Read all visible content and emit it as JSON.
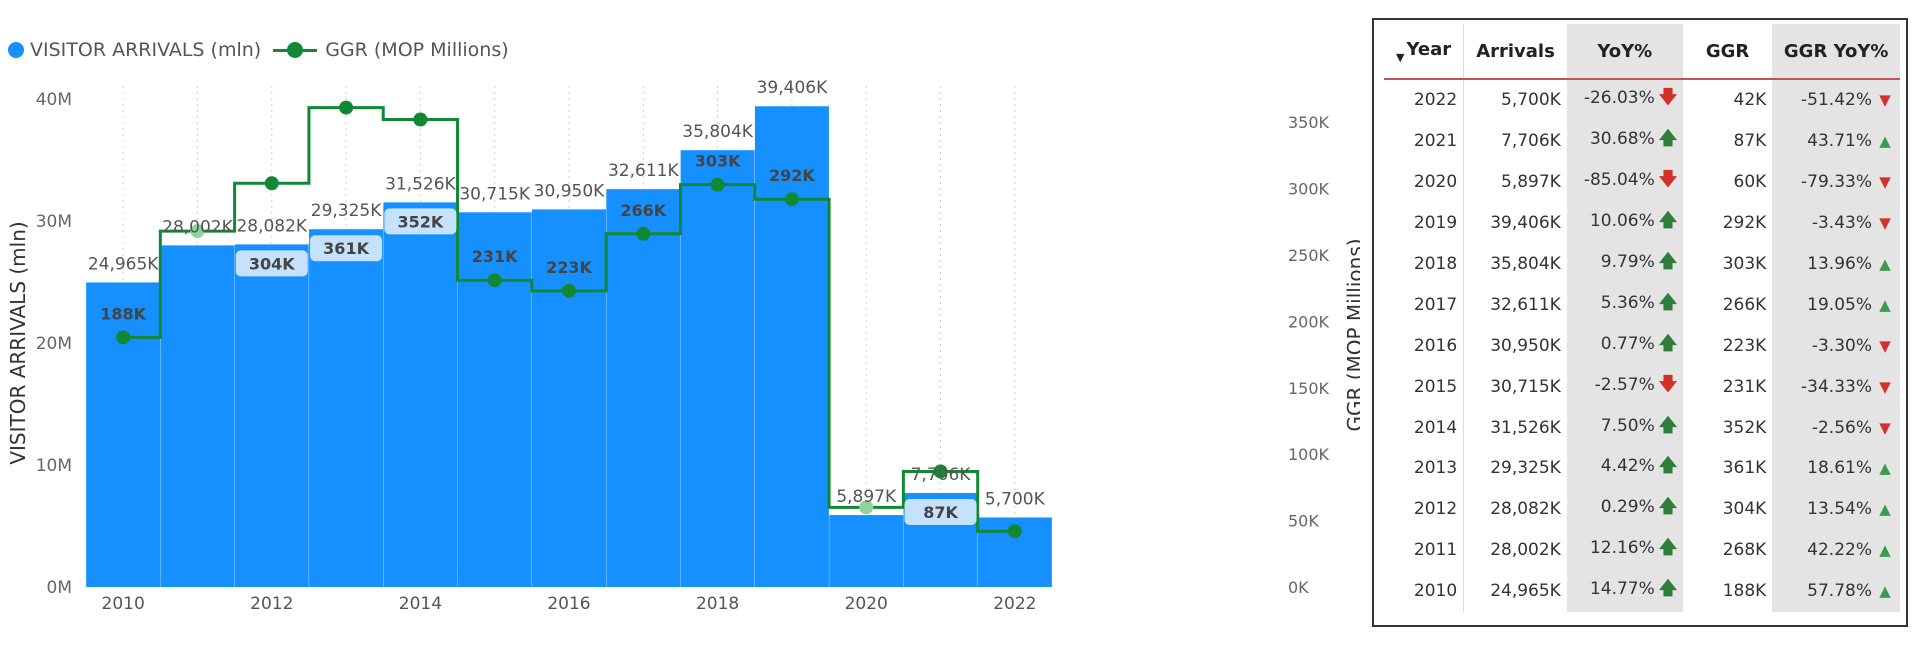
{
  "legend": {
    "bar_label": "VISITOR ARRIVALS (mln)",
    "line_label": "GGR (MOP Millions)"
  },
  "chart_data": {
    "type": "bar",
    "categories": [
      "2010",
      "2011",
      "2012",
      "2013",
      "2014",
      "2015",
      "2016",
      "2017",
      "2018",
      "2019",
      "2020",
      "2021",
      "2022"
    ],
    "x_tick_labels": [
      "2010",
      "2012",
      "2014",
      "2016",
      "2018",
      "2020",
      "2022"
    ],
    "ylabel": "VISITOR ARRIVALS (mln)",
    "y2label": "GGR (MOP Millions)",
    "ylim": [
      0,
      40
    ],
    "y2lim": [
      0,
      365
    ],
    "yticks": [
      "0M",
      "10M",
      "20M",
      "30M",
      "40M"
    ],
    "y2ticks": [
      "0K",
      "50K",
      "100K",
      "150K",
      "200K",
      "250K",
      "300K",
      "350K"
    ],
    "grid": "vertical dotted",
    "legend_position": "top-left",
    "series": [
      {
        "name": "VISITOR ARRIVALS (mln)",
        "type": "bar",
        "color": "#1790ff",
        "values": [
          24.965,
          28.002,
          28.082,
          29.325,
          31.526,
          30.715,
          30.95,
          32.611,
          35.804,
          39.406,
          5.897,
          7.706,
          5.7
        ],
        "labels": [
          "24,965K",
          "28,002K",
          "28,082K",
          "29,325K",
          "31,526K",
          "30,715K",
          "30,950K",
          "32,611K",
          "35,804K",
          "39,406K",
          "5,897K",
          "7,706K",
          "5,700K"
        ]
      },
      {
        "name": "GGR (MOP Millions)",
        "type": "step-line",
        "color": "#118833",
        "values": [
          188,
          268,
          304,
          361,
          352,
          231,
          223,
          266,
          303,
          292,
          60,
          87,
          42
        ],
        "labels": [
          "188K",
          "",
          "304K",
          "361K",
          "352K",
          "231K",
          "223K",
          "266K",
          "303K",
          "292K",
          "",
          "87K",
          ""
        ]
      }
    ]
  },
  "table": {
    "headers": [
      "Year",
      "Arrivals",
      "YoY%",
      "GGR",
      "GGR YoY%"
    ],
    "rows": [
      {
        "year": "2022",
        "arrivals": "5,700K",
        "yoy": "-26.03%",
        "yoy_dir": "down",
        "ggr": "42K",
        "ggr_yoy": "-51.42%",
        "ggr_dir": "down"
      },
      {
        "year": "2021",
        "arrivals": "7,706K",
        "yoy": "30.68%",
        "yoy_dir": "up",
        "ggr": "87K",
        "ggr_yoy": "43.71%",
        "ggr_dir": "up"
      },
      {
        "year": "2020",
        "arrivals": "5,897K",
        "yoy": "-85.04%",
        "yoy_dir": "down",
        "ggr": "60K",
        "ggr_yoy": "-79.33%",
        "ggr_dir": "down"
      },
      {
        "year": "2019",
        "arrivals": "39,406K",
        "yoy": "10.06%",
        "yoy_dir": "up",
        "ggr": "292K",
        "ggr_yoy": "-3.43%",
        "ggr_dir": "down"
      },
      {
        "year": "2018",
        "arrivals": "35,804K",
        "yoy": "9.79%",
        "yoy_dir": "up",
        "ggr": "303K",
        "ggr_yoy": "13.96%",
        "ggr_dir": "up"
      },
      {
        "year": "2017",
        "arrivals": "32,611K",
        "yoy": "5.36%",
        "yoy_dir": "up",
        "ggr": "266K",
        "ggr_yoy": "19.05%",
        "ggr_dir": "up"
      },
      {
        "year": "2016",
        "arrivals": "30,950K",
        "yoy": "0.77%",
        "yoy_dir": "up",
        "ggr": "223K",
        "ggr_yoy": "-3.30%",
        "ggr_dir": "down"
      },
      {
        "year": "2015",
        "arrivals": "30,715K",
        "yoy": "-2.57%",
        "yoy_dir": "down",
        "ggr": "231K",
        "ggr_yoy": "-34.33%",
        "ggr_dir": "down"
      },
      {
        "year": "2014",
        "arrivals": "31,526K",
        "yoy": "7.50%",
        "yoy_dir": "up",
        "ggr": "352K",
        "ggr_yoy": "-2.56%",
        "ggr_dir": "down"
      },
      {
        "year": "2013",
        "arrivals": "29,325K",
        "yoy": "4.42%",
        "yoy_dir": "up",
        "ggr": "361K",
        "ggr_yoy": "18.61%",
        "ggr_dir": "up"
      },
      {
        "year": "2012",
        "arrivals": "28,082K",
        "yoy": "0.29%",
        "yoy_dir": "up",
        "ggr": "304K",
        "ggr_yoy": "13.54%",
        "ggr_dir": "up"
      },
      {
        "year": "2011",
        "arrivals": "28,002K",
        "yoy": "12.16%",
        "yoy_dir": "up",
        "ggr": "268K",
        "ggr_yoy": "42.22%",
        "ggr_dir": "up"
      },
      {
        "year": "2010",
        "arrivals": "24,965K",
        "yoy": "14.77%",
        "yoy_dir": "up",
        "ggr": "188K",
        "ggr_yoy": "57.78%",
        "ggr_dir": "up"
      }
    ]
  },
  "colors": {
    "bar": "#1790ff",
    "line": "#118833",
    "up_arrow": "#2f7d3a",
    "down_arrow": "#d3302a",
    "header_rule": "#c8505a"
  },
  "icons": {
    "sort": "sort-descending-icon",
    "up": "arrow-up-icon",
    "down": "arrow-down-icon",
    "tri_up": "triangle-up-icon",
    "tri_down": "triangle-down-icon"
  }
}
